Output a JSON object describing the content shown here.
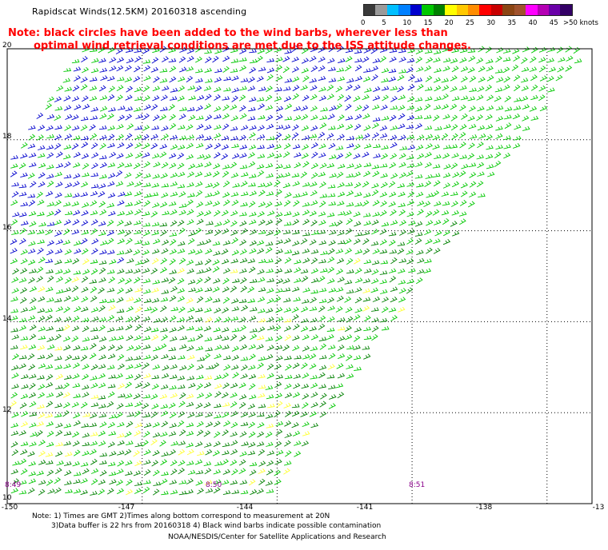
{
  "title": "Rapidscat Winds(12.5KM) 20160318 ascending",
  "note": {
    "line1": "Note: black circles have been added to the wind barbs, wherever less than",
    "line2": "optimal wind retrieval conditions are met due to the ISS attitude changes."
  },
  "legend": {
    "labels": [
      "0",
      "5",
      "10",
      "15",
      "20",
      "25",
      "30",
      "35",
      "40",
      "45",
      ">50 knots"
    ],
    "colors": [
      "#3a3a3a",
      "#9a9a9a",
      "#00bfff",
      "#0080ff",
      "#0000cd",
      "#00c800",
      "#008000",
      "#ffff00",
      "#ffc800",
      "#ff8c00",
      "#ff0000",
      "#c80000",
      "#8b4513",
      "#a0522d",
      "#ff00ff",
      "#b400b4",
      "#6a00a8",
      "#330066"
    ]
  },
  "axes": {
    "lat_ticks": [
      "20",
      "18",
      "16",
      "14",
      "12",
      "10"
    ],
    "lon_ticks": [
      "-150",
      "-147",
      "-144",
      "-141",
      "-138",
      "-13"
    ]
  },
  "times": [
    "8:49",
    "8:50",
    "8:51"
  ],
  "footer": {
    "line1": "Note: 1) Times are GMT 2)Times along bottom correspond to measurement at 20N",
    "line2": "3)Data buffer is 22 hrs from 20160318 4) Black wind barbs indicate possible contamination",
    "line3": "NOAA/NESDIS/Center for Satellite Applications and Research"
  },
  "map_data": {
    "lat_range": [
      10,
      20
    ],
    "lon_range": [
      -150,
      -137
    ],
    "grid_lats": [
      18,
      16,
      14,
      12
    ],
    "grid_lons": [
      -147,
      -144,
      -141,
      -138
    ],
    "barb_colors": {
      "slow": "#0000cd",
      "mid": "#00c800",
      "fast": "#008000",
      "strong": "#ffff33"
    }
  }
}
